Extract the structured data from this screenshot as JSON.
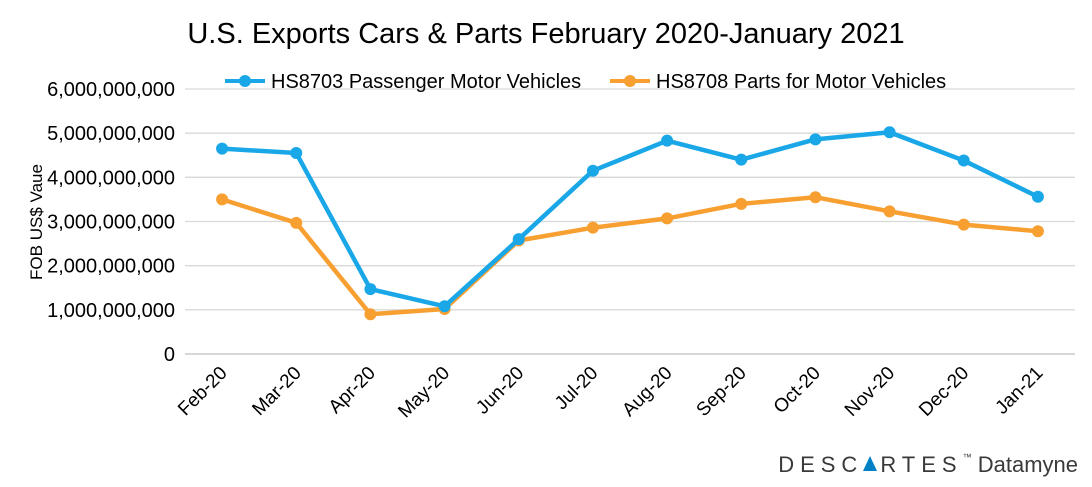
{
  "chart_data": {
    "type": "line",
    "title": "U.S. Exports Cars & Parts February 2020-January 2021",
    "ylabel": "FOB US$ Vaue",
    "xlabel": "",
    "categories": [
      "Feb-20",
      "Mar-20",
      "Apr-20",
      "May-20",
      "Jun-20",
      "Jul-20",
      "Aug-20",
      "Sep-20",
      "Oct-20",
      "Nov-20",
      "Dec-20",
      "Jan-21"
    ],
    "ylim": [
      0,
      6000000000
    ],
    "yticks": [
      0,
      1000000000,
      2000000000,
      3000000000,
      4000000000,
      5000000000,
      6000000000
    ],
    "ytick_labels": [
      "0",
      "1,000,000,000",
      "2,000,000,000",
      "3,000,000,000",
      "4,000,000,000",
      "5,000,000,000",
      "6,000,000,000"
    ],
    "grid": true,
    "legend_position": "top",
    "series": [
      {
        "name": "HS8703 Passenger Motor Vehicles",
        "color": "#1aa7e8",
        "values": [
          4650000000,
          4550000000,
          1470000000,
          1080000000,
          2600000000,
          4150000000,
          4830000000,
          4400000000,
          4860000000,
          5020000000,
          4380000000,
          3560000000
        ]
      },
      {
        "name": "HS8708 Parts for Motor Vehicles",
        "color": "#f7a031",
        "values": [
          3500000000,
          2970000000,
          900000000,
          1020000000,
          2570000000,
          2860000000,
          3070000000,
          3400000000,
          3550000000,
          3230000000,
          2930000000,
          2780000000
        ]
      }
    ]
  },
  "brand": {
    "name_part1": "DESC",
    "name_part2": "RTES",
    "trademark": "™",
    "product": "Datamyne"
  }
}
